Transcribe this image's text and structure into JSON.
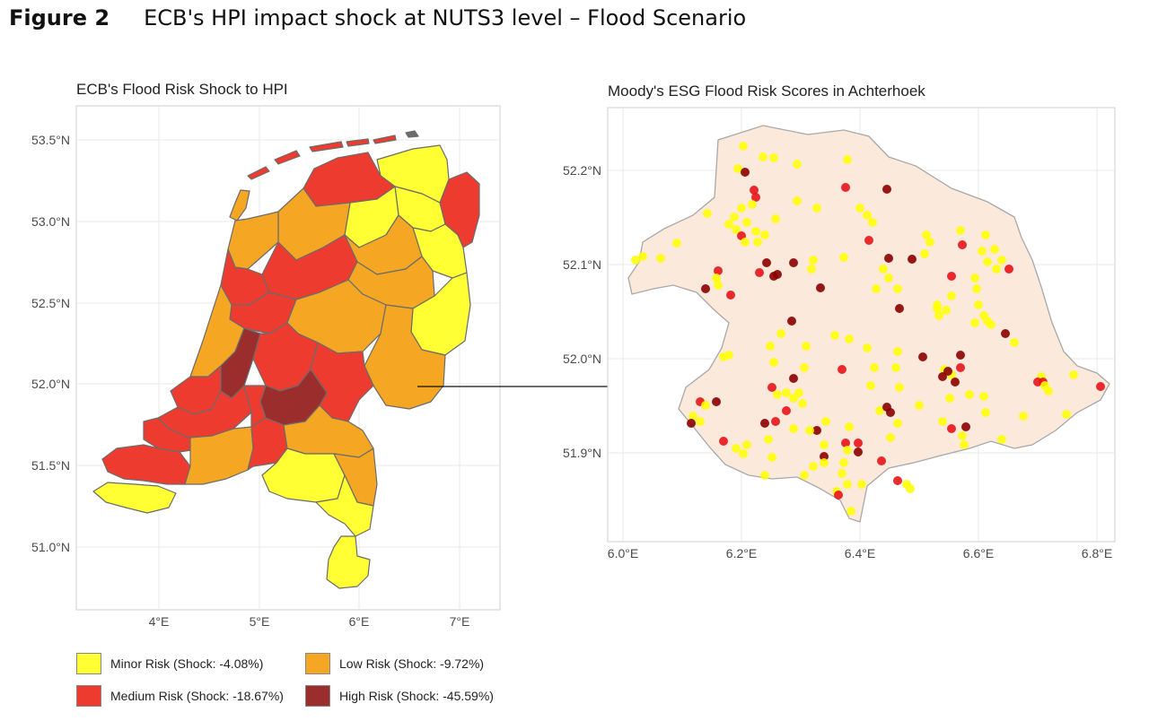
{
  "figure": {
    "number": "Figure 2",
    "title": "ECB's HPI impact shock at NUTS3 level – Flood Scenario"
  },
  "left_map": {
    "title": "ECB's Flood Risk Shock to HPI",
    "y_ticks": [
      "53.5°N",
      "53.0°N",
      "52.5°N",
      "52.0°N",
      "51.5°N",
      "51.0°N"
    ],
    "x_ticks": [
      "4°E",
      "5°E",
      "6°E",
      "7°E"
    ]
  },
  "right_map": {
    "title": "Moody's ESG Flood Risk Scores in Achterhoek",
    "y_ticks": [
      "52.2°N",
      "52.1°N",
      "52.0°N",
      "51.9°N"
    ],
    "x_ticks": [
      "6.0°E",
      "6.2°E",
      "6.4°E",
      "6.6°E",
      "6.8°E"
    ]
  },
  "legend": [
    {
      "label": "Minor Risk (Shock: -4.08%)",
      "color": "#ffff33"
    },
    {
      "label": "Low Risk (Shock: -9.72%)",
      "color": "#f5a623"
    },
    {
      "label": "Medium Risk (Shock: -18.67%)",
      "color": "#ee3b2f"
    },
    {
      "label": "High Risk (Shock: -45.59%)",
      "color": "#9b2d2d"
    }
  ],
  "colors": {
    "minor": "#ffff33",
    "low": "#f5a623",
    "medium": "#ee3b2f",
    "high": "#9b2d2d",
    "point_minor": "#ffff00",
    "point_medium": "#e8141b",
    "point_high": "#8b0000",
    "region_fill": "#fbeadb",
    "grid": "#e6e6e6",
    "frame": "#cccccc"
  }
}
